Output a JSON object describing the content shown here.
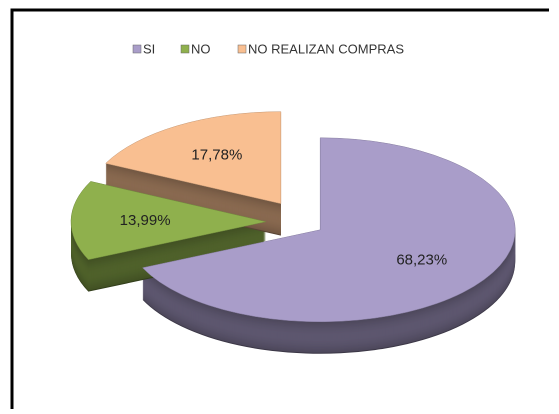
{
  "chart_data": {
    "type": "pie",
    "categories": [
      "SI",
      "NO",
      "NO REALIZAN COMPRAS"
    ],
    "values": [
      68.23,
      13.99,
      17.78
    ],
    "value_labels": [
      "68,23%",
      "13,99%",
      "17,78%"
    ],
    "colors": [
      "#a99dc9",
      "#8fb04d",
      "#f9bf91"
    ],
    "legend": "top"
  }
}
